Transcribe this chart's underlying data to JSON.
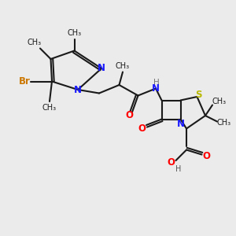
{
  "bg_color": "#ebebeb",
  "bond_color": "#1a1a1a",
  "bond_width": 1.5,
  "figsize": [
    3.0,
    3.0
  ],
  "dpi": 100,
  "xlim": [
    0,
    10
  ],
  "ylim": [
    0,
    10
  ]
}
